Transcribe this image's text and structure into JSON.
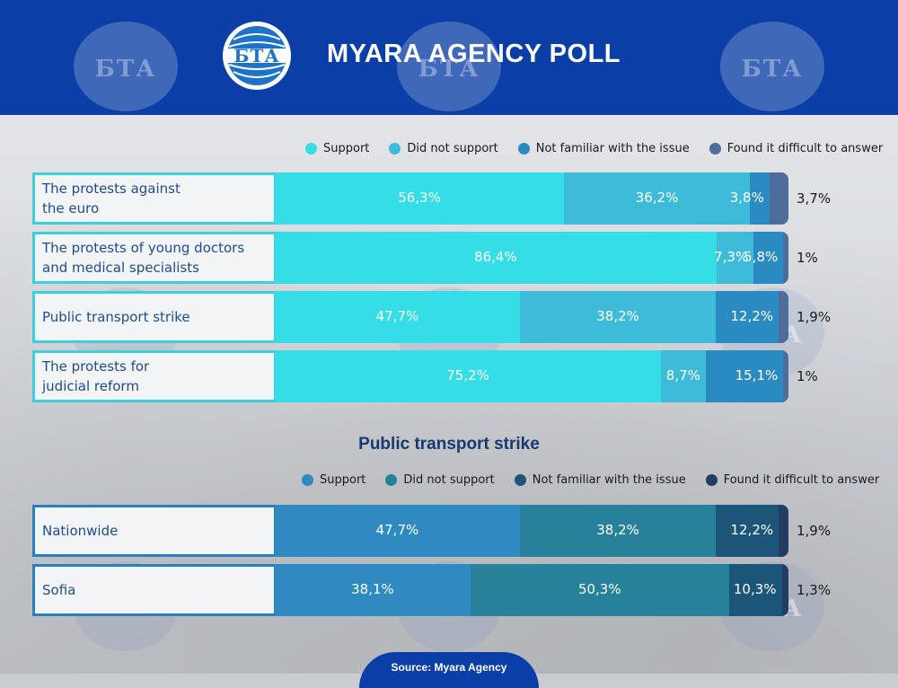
{
  "header": {
    "title": "MYARA AGENCY POLL",
    "logo_text": "БТА",
    "background": "#0b3ea6"
  },
  "legend1": [
    {
      "label": "Support",
      "color": "#35dde6"
    },
    {
      "label": "Did not support",
      "color": "#3dbbd8"
    },
    {
      "label": "Not familiar with the issue",
      "color": "#2a8bc2"
    },
    {
      "label": "Found it difficult to answer",
      "color": "#4e6c9c"
    }
  ],
  "legend2": [
    {
      "label": "Support",
      "color": "#2f8ac2"
    },
    {
      "label": "Did not support",
      "color": "#27819a"
    },
    {
      "label": "Not familiar with the issue",
      "color": "#1b5679"
    },
    {
      "label": "Found it difficult to answer",
      "color": "#243b62"
    }
  ],
  "subtitle": "Public transport strike",
  "source": "Source: Myara Agency",
  "chart_data": [
    {
      "type": "bar",
      "orientation": "horizontal-stacked",
      "categories": [
        "The protests against the euro",
        "The protests of young doctors and medical specialists",
        "Public transport strike",
        "The protests for judicial reform"
      ],
      "series": [
        {
          "name": "Support",
          "values": [
            56.3,
            86.4,
            47.7,
            75.2
          ],
          "labels": [
            "56,3%",
            "86,4%",
            "47,7%",
            "75,2%"
          ]
        },
        {
          "name": "Did not support",
          "values": [
            36.2,
            7.3,
            38.2,
            8.7
          ],
          "labels": [
            "36,2%",
            "7,3%",
            "38,2%",
            "8,7%"
          ]
        },
        {
          "name": "Not familiar with the issue",
          "values": [
            3.8,
            5.8,
            12.2,
            15.1
          ],
          "labels": [
            "3,8%",
            "5,8%",
            "12,2%",
            "15,1%"
          ]
        },
        {
          "name": "Found it difficult to answer",
          "values": [
            3.7,
            1,
            1.9,
            1
          ],
          "labels": [
            "3,7%",
            "1%",
            "1,9%",
            "1%"
          ]
        }
      ],
      "xlim": [
        0,
        100
      ]
    },
    {
      "type": "bar",
      "orientation": "horizontal-stacked",
      "title": "Public transport strike",
      "categories": [
        "Nationwide",
        "Sofia"
      ],
      "series": [
        {
          "name": "Support",
          "values": [
            47.7,
            38.1
          ],
          "labels": [
            "47,7%",
            "38,1%"
          ]
        },
        {
          "name": "Did not support",
          "values": [
            38.2,
            50.3
          ],
          "labels": [
            "38,2%",
            "50,3%"
          ]
        },
        {
          "name": "Not familiar with the issue",
          "values": [
            12.2,
            10.3
          ],
          "labels": [
            "12,2%",
            "10,3%"
          ]
        },
        {
          "name": "Found it difficult to answer",
          "values": [
            1.9,
            1.3
          ],
          "labels": [
            "1,9%",
            "1,3%"
          ]
        }
      ],
      "xlim": [
        0,
        100
      ]
    }
  ]
}
